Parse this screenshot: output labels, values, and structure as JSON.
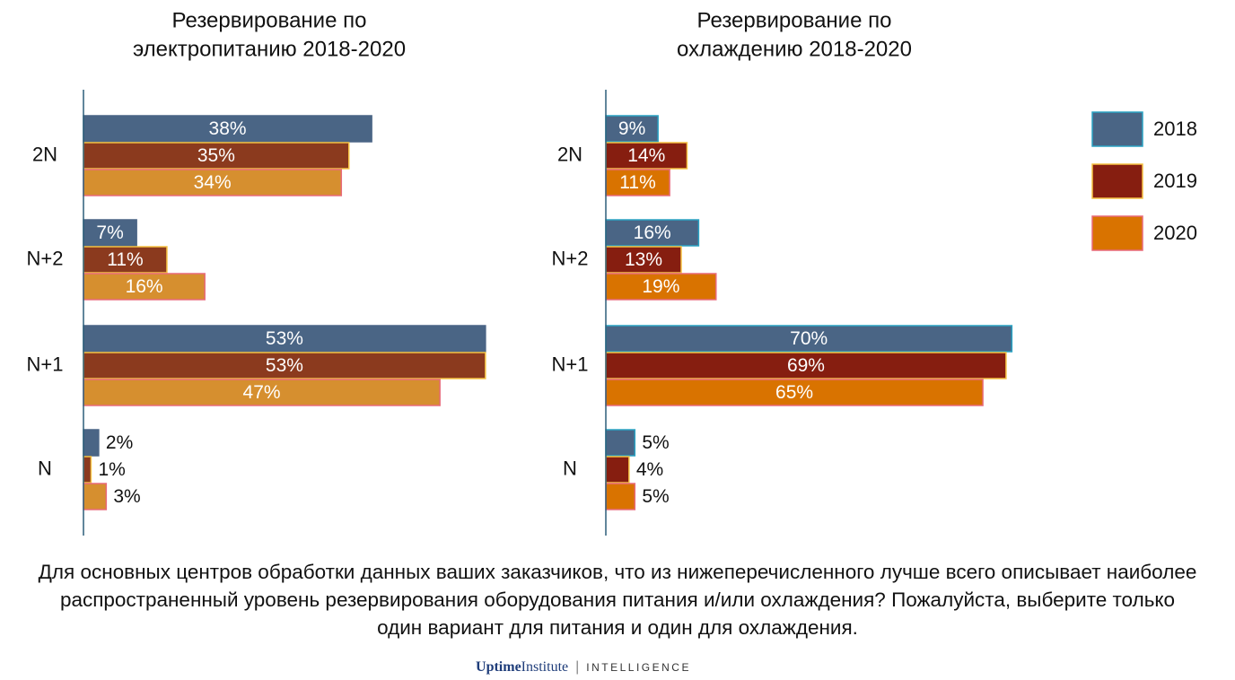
{
  "chart_data": [
    {
      "type": "bar",
      "orientation": "horizontal",
      "title": [
        "Резервирование по",
        "электропитанию 2018-2020"
      ],
      "categories": [
        "2N",
        "N+2",
        "N+1",
        "N"
      ],
      "xlim": [
        0,
        60
      ],
      "series": [
        {
          "color": "#4a6585",
          "edgecolor": "#4a6585",
          "values": [
            38,
            7,
            53,
            2
          ],
          "value_labels": [
            "38%",
            "7%",
            "53%",
            "2%"
          ]
        },
        {
          "color": "#8b3a1e",
          "edgecolor": "#f5c242",
          "values": [
            35,
            11,
            53,
            1
          ],
          "value_labels": [
            "35%",
            "11%",
            "53%",
            "1%"
          ]
        },
        {
          "color": "#d68f2f",
          "edgecolor": "#e86a7a",
          "values": [
            34,
            16,
            47,
            3
          ],
          "value_labels": [
            "34%",
            "16%",
            "47%",
            "3%"
          ]
        }
      ]
    },
    {
      "type": "bar",
      "orientation": "horizontal",
      "title": [
        "Резервирование по",
        "охлаждению 2018-2020"
      ],
      "categories": [
        "2N",
        "N+2",
        "N+1",
        "N"
      ],
      "xlim": [
        0,
        80
      ],
      "legend": "right",
      "series": [
        {
          "name": "2018",
          "color": "#4a6585",
          "edgecolor": "#2aa3c4",
          "values": [
            9,
            16,
            70,
            5
          ],
          "value_labels": [
            "9%",
            "16%",
            "70%",
            "5%"
          ]
        },
        {
          "name": "2019",
          "color": "#861e10",
          "edgecolor": "#f5c242",
          "values": [
            14,
            13,
            69,
            4
          ],
          "value_labels": [
            "14%",
            "13%",
            "69%",
            "4%"
          ]
        },
        {
          "name": "2020",
          "color": "#d97300",
          "edgecolor": "#e86a7a",
          "values": [
            11,
            19,
            65,
            5
          ],
          "value_labels": [
            "11%",
            "19%",
            "65%",
            "5%"
          ]
        }
      ]
    }
  ],
  "caption": "Для основных центров обработки данных ваших заказчиков, что из нижеперечисленного лучше всего описывает наиболее распространенный уровень резервирования оборудования питания и/или охлаждения? Пожалуйста, выберите только один вариант для питания и один для охлаждения.",
  "footer": {
    "brand_1": "Uptime",
    "brand_2": "Institute",
    "product": "INTELLIGENCE"
  }
}
